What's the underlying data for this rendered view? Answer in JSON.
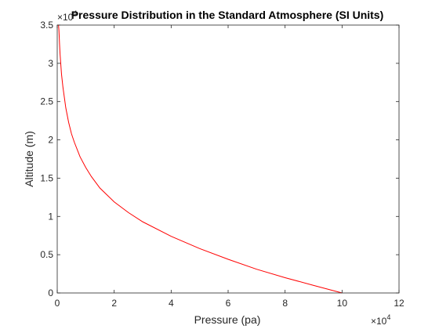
{
  "chart_data": {
    "type": "line",
    "title": "Pressure Distribution in the Standard Atmosphere (SI Units)",
    "xlabel": "Pressure (pa)",
    "ylabel": "Altitude (m)",
    "x_multiplier": "×10",
    "x_multiplier_exponent": "4",
    "y_multiplier": "×10",
    "y_multiplier_exponent": "4",
    "xlim": [
      0,
      120000
    ],
    "ylim": [
      0,
      35000
    ],
    "x_ticks": [
      0,
      20000,
      40000,
      60000,
      80000,
      100000,
      120000
    ],
    "x_tick_labels": [
      "0",
      "2",
      "4",
      "6",
      "8",
      "10",
      "12"
    ],
    "y_ticks": [
      0,
      5000,
      10000,
      15000,
      20000,
      25000,
      30000,
      35000
    ],
    "y_tick_labels": [
      "0",
      "0.5",
      "1",
      "1.5",
      "2",
      "2.5",
      "3",
      "3.5"
    ],
    "grid": false,
    "series": [
      {
        "color": "#ff0000",
        "x": [
          100000,
          89900,
          80000,
          70000,
          60000,
          50000,
          40000,
          30000,
          25000,
          20000,
          15000,
          12000,
          10000,
          8000,
          6000,
          5000,
          4000,
          3000,
          2000,
          1500,
          1000,
          800,
          600,
          450,
          350,
          300
        ],
        "y": [
          0,
          1000,
          2000,
          3100,
          4400,
          5800,
          7400,
          9300,
          10500,
          11900,
          13700,
          15200,
          16400,
          17800,
          19700,
          20800,
          22300,
          24200,
          26900,
          28600,
          31200,
          32600,
          34300,
          35000,
          35000,
          35000
        ]
      }
    ]
  }
}
